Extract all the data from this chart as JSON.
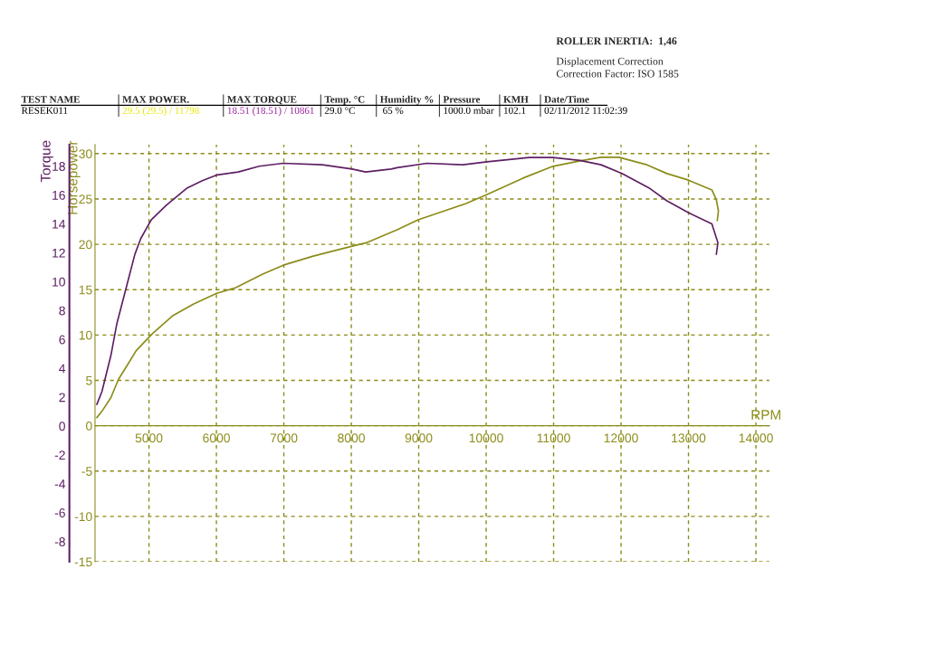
{
  "chart_data": {
    "type": "line",
    "xlabel": "RPM",
    "ylabel": "Horsepower",
    "y2label": "Torque",
    "annotations": [
      "ROLLER INERTIA:  1,46",
      "Displacement Correction",
      "Correction Factor: ISO 1585",
      "TEST NAME",
      "MAX POWER.",
      "MAX TORQUE",
      "Temp. °C",
      "Humidity %",
      "Pressure",
      "KMH",
      "Date/Time",
      "RESEK011",
      "29.5 (29.5) / 11798",
      "18.51 (18.51) / 10861",
      "29.0 °C",
      " 65 %",
      "1000.0 mbar",
      "102.1",
      "02/11/2012 11:02:39"
    ],
    "xlim": [
      4200,
      14200
    ],
    "xticks": [
      5000,
      6000,
      7000,
      8000,
      9000,
      10000,
      11000,
      12000,
      13000,
      14000
    ],
    "ylim": [
      -15,
      31
    ],
    "yticks": [
      -15,
      -10,
      -5,
      0,
      5,
      10,
      15,
      20,
      25,
      30
    ],
    "y2lim": [
      -9.4,
      19.5
    ],
    "y2ticks": [
      -8,
      -6,
      -4,
      -2,
      0,
      2,
      4,
      6,
      8,
      10,
      12,
      14,
      16,
      18
    ],
    "grid": true,
    "marker": "none",
    "line_style": "solid",
    "series": [
      {
        "color": "#8c8c1a",
        "axis": "y",
        "x": [
          4227,
          4303,
          4436,
          4547,
          4680,
          4813,
          5058,
          5347,
          5657,
          6004,
          6280,
          6680,
          6991,
          7436,
          8013,
          8236,
          8680,
          8991,
          9702,
          10013,
          10547,
          10991,
          11391,
          11702,
          11969,
          12369,
          12680,
          12991,
          13347,
          13413,
          13444,
          13427
        ],
        "values": [
          0.9,
          1.6,
          3.1,
          5.1,
          6.7,
          8.3,
          10.2,
          12.1,
          13.4,
          14.6,
          15.2,
          16.7,
          17.7,
          18.7,
          19.8,
          20.2,
          21.6,
          22.7,
          24.5,
          25.5,
          27.3,
          28.6,
          29.2,
          29.6,
          29.6,
          28.8,
          27.8,
          27.1,
          26.0,
          24.9,
          23.7,
          22.6
        ]
      },
      {
        "color": "#5e1f63",
        "axis": "y2",
        "x": [
          4227,
          4303,
          4436,
          4524,
          4680,
          4791,
          4880,
          5036,
          5257,
          5569,
          5791,
          6013,
          6324,
          6636,
          6991,
          7569,
          8013,
          8213,
          8591,
          8680,
          9124,
          9657,
          10013,
          10636,
          10991,
          11391,
          11702,
          12013,
          12413,
          12680,
          12991,
          13347,
          13436,
          13413
        ],
        "values": [
          1.5,
          2.4,
          4.9,
          7.1,
          9.9,
          11.9,
          13.0,
          14.3,
          15.3,
          16.5,
          17.0,
          17.4,
          17.6,
          18.0,
          18.2,
          18.1,
          17.8,
          17.6,
          17.8,
          17.9,
          18.2,
          18.1,
          18.3,
          18.6,
          18.6,
          18.4,
          18.1,
          17.5,
          16.5,
          15.6,
          14.8,
          14.0,
          12.7,
          11.9
        ]
      }
    ]
  }
}
